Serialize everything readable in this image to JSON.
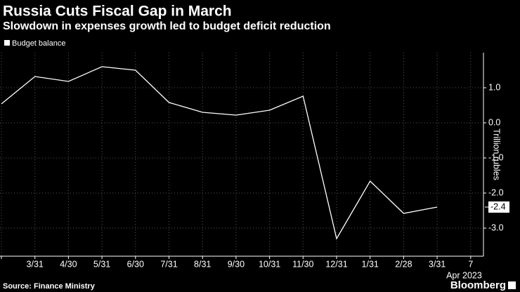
{
  "chart_data": {
    "type": "line",
    "title": "Russia Cuts Fiscal Gap in March",
    "subtitle": "Slowdown in expenses growth led to budget deficit reduction",
    "y_label": "Trillion rubles",
    "x_sublabel": "Apr 2023",
    "source": "Source: Finance Ministry",
    "brand": "Bloomberg",
    "categories": [
      null,
      "3/31",
      "4/30",
      "5/31",
      "6/30",
      "7/31",
      "8/31",
      "9/30",
      "10/31",
      "11/30",
      "12/31",
      "1/31",
      "2/28",
      "3/31",
      "7"
    ],
    "series": [
      {
        "name": "Budget balance",
        "color": "#ffffff",
        "values": [
          0.54,
          1.32,
          1.18,
          1.6,
          1.5,
          0.58,
          0.3,
          0.22,
          0.36,
          0.76,
          -3.3,
          -1.66,
          -2.58,
          -2.4,
          null
        ],
        "value_labels": [
          null,
          null,
          null,
          null,
          null,
          null,
          null,
          null,
          null,
          null,
          null,
          null,
          null,
          "-2.4",
          null
        ]
      }
    ],
    "ylim": [
      -3.8,
      2.0
    ],
    "yticks": [
      {
        "value": 1,
        "label": "1.0"
      },
      {
        "value": 0,
        "label": "0.0"
      },
      {
        "value": -1,
        "label": "-1.0"
      },
      {
        "value": -2,
        "label": "-2.0"
      },
      {
        "value": -3,
        "label": "-3.0"
      }
    ],
    "grid": true
  }
}
